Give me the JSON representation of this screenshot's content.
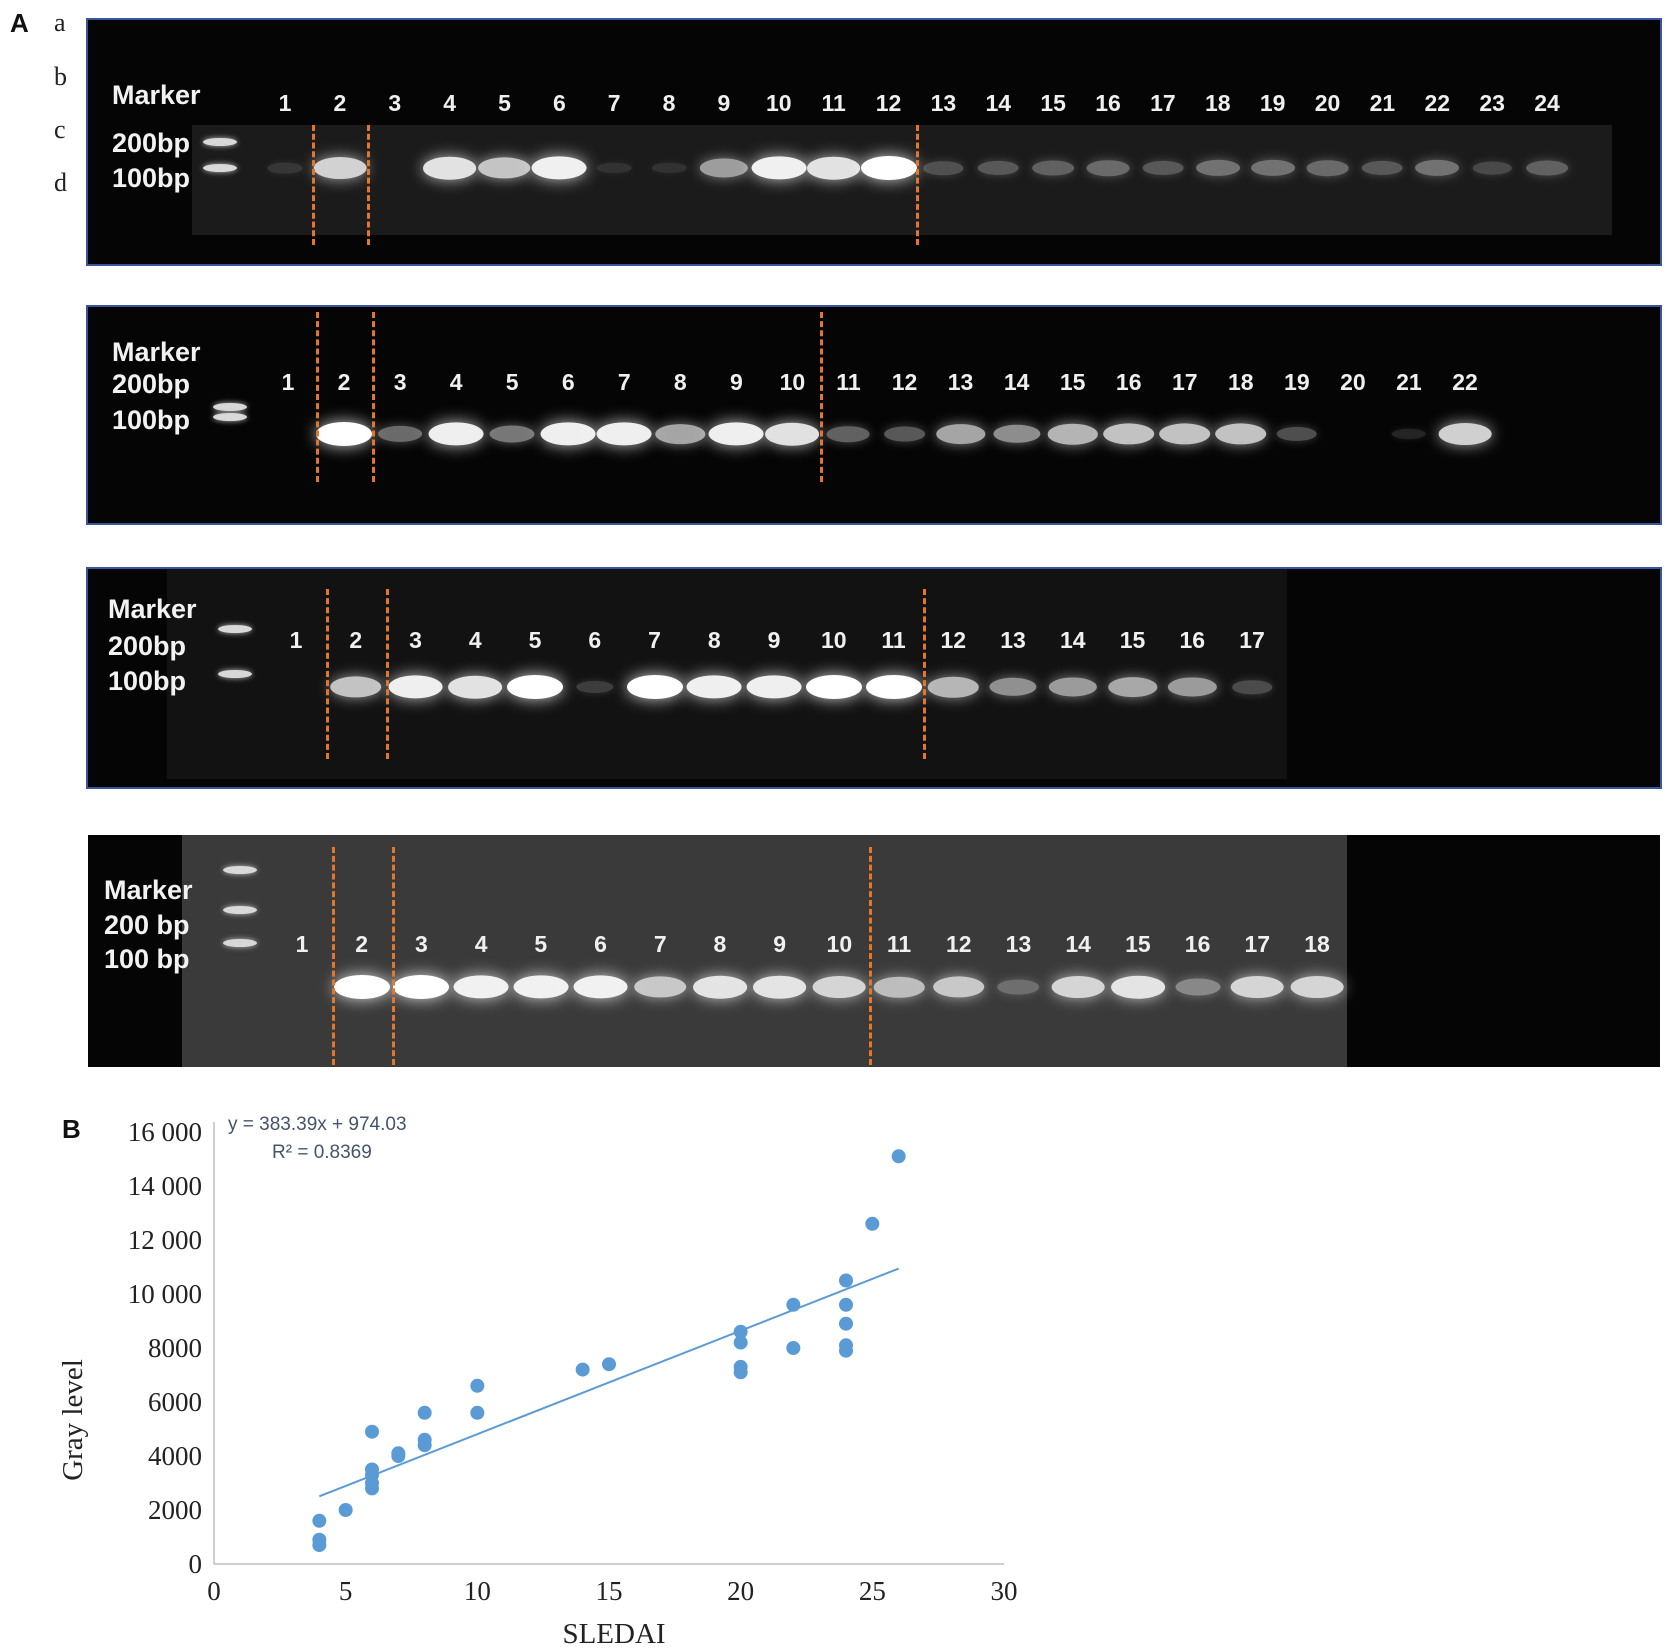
{
  "panel_labels": {
    "a": "A",
    "b": "B"
  },
  "row_labels": [
    "a",
    "b",
    "c",
    "d"
  ],
  "gels": [
    {
      "id": "gel-a",
      "marker_label": "Marker",
      "size_labels": [
        "200bp",
        "100bp"
      ],
      "lanes": [
        "1",
        "2",
        "3",
        "4",
        "5",
        "6",
        "7",
        "8",
        "9",
        "10",
        "11",
        "12",
        "13",
        "14",
        "15",
        "16",
        "17",
        "18",
        "19",
        "20",
        "21",
        "22",
        "23",
        "24"
      ],
      "band_intensity": [
        0.05,
        0.85,
        0.0,
        0.9,
        0.8,
        0.95,
        0.02,
        0.02,
        0.65,
        0.95,
        0.9,
        1.0,
        0.25,
        0.3,
        0.35,
        0.4,
        0.3,
        0.45,
        0.45,
        0.4,
        0.3,
        0.45,
        0.2,
        0.35
      ],
      "divider_after_lanes": [
        1,
        2,
        12
      ],
      "divider_color": "#e2762a",
      "frame_color": "#3a55a0"
    },
    {
      "id": "gel-b",
      "marker_label": "Marker",
      "size_labels": [
        "200bp",
        "100bp"
      ],
      "lanes": [
        "1",
        "2",
        "3",
        "4",
        "5",
        "6",
        "7",
        "8",
        "9",
        "10",
        "11",
        "12",
        "13",
        "14",
        "15",
        "16",
        "17",
        "18",
        "19",
        "20",
        "21",
        "22"
      ],
      "band_intensity": [
        0.0,
        1.0,
        0.45,
        0.95,
        0.5,
        0.95,
        0.95,
        0.7,
        0.95,
        0.9,
        0.4,
        0.35,
        0.7,
        0.6,
        0.75,
        0.8,
        0.8,
        0.8,
        0.3,
        0.0,
        0.02,
        0.85
      ],
      "divider_after_lanes": [
        1,
        2,
        10
      ],
      "divider_color": "#e2762a",
      "frame_color": "#3a55a0"
    },
    {
      "id": "gel-c",
      "marker_label": "Marker",
      "size_labels": [
        "200bp",
        "100bp"
      ],
      "lanes": [
        "1",
        "2",
        "3",
        "4",
        "5",
        "6",
        "7",
        "8",
        "9",
        "10",
        "11",
        "12",
        "13",
        "14",
        "15",
        "16",
        "17"
      ],
      "band_intensity": [
        0.0,
        0.8,
        0.95,
        0.9,
        1.0,
        0.15,
        1.0,
        0.95,
        0.95,
        1.0,
        1.0,
        0.75,
        0.6,
        0.65,
        0.7,
        0.65,
        0.25
      ],
      "divider_after_lanes": [
        1,
        2,
        11
      ],
      "divider_color": "#e2762a",
      "frame_color": "#3a55a0"
    },
    {
      "id": "gel-d",
      "marker_label": "Marker",
      "size_labels": [
        "200 bp",
        "100 bp"
      ],
      "lanes": [
        "1",
        "2",
        "3",
        "4",
        "5",
        "6",
        "7",
        "8",
        "9",
        "10",
        "11",
        "12",
        "13",
        "14",
        "15",
        "16",
        "17",
        "18"
      ],
      "band_intensity": [
        0.0,
        1.0,
        1.0,
        0.95,
        0.95,
        0.95,
        0.8,
        0.9,
        0.9,
        0.85,
        0.75,
        0.8,
        0.35,
        0.85,
        0.9,
        0.5,
        0.85,
        0.85
      ],
      "divider_after_lanes": [
        1,
        2,
        10
      ],
      "divider_color": "#e2762a",
      "frame_color": "#ffffff"
    }
  ],
  "chart_data": {
    "type": "scatter",
    "xlabel": "SLEDAI",
    "ylabel": "Gray level",
    "xlim": [
      0,
      30
    ],
    "ylim": [
      0,
      16000
    ],
    "x_ticks": [
      "0",
      "5",
      "10",
      "15",
      "20",
      "25",
      "30"
    ],
    "y_ticks": [
      "0",
      "2000",
      "4000",
      "6000",
      "8000",
      "10 000",
      "12 000",
      "14 000",
      "16 000"
    ],
    "marker_color": "#5b9bd5",
    "trendline": {
      "equation": "y = 383.39x + 974.03",
      "r_squared": "R² = 0.8369",
      "slope": 383.39,
      "intercept": 974.03,
      "x_range": [
        4,
        26
      ],
      "color": "#5b9bd5"
    },
    "points": [
      [
        4,
        1600
      ],
      [
        4,
        900
      ],
      [
        4,
        700
      ],
      [
        5,
        2000
      ],
      [
        6,
        4900
      ],
      [
        6,
        3500
      ],
      [
        6,
        3300
      ],
      [
        6,
        3000
      ],
      [
        6,
        2800
      ],
      [
        7,
        4100
      ],
      [
        7,
        4000
      ],
      [
        8,
        5600
      ],
      [
        8,
        4600
      ],
      [
        8,
        4400
      ],
      [
        10,
        6600
      ],
      [
        10,
        5600
      ],
      [
        14,
        7200
      ],
      [
        15,
        7400
      ],
      [
        20,
        8600
      ],
      [
        20,
        8200
      ],
      [
        20,
        7300
      ],
      [
        20,
        7100
      ],
      [
        22,
        9600
      ],
      [
        22,
        8000
      ],
      [
        24,
        10500
      ],
      [
        24,
        9600
      ],
      [
        24,
        8900
      ],
      [
        24,
        8100
      ],
      [
        24,
        7900
      ],
      [
        25,
        12600
      ],
      [
        26,
        15100
      ]
    ]
  }
}
